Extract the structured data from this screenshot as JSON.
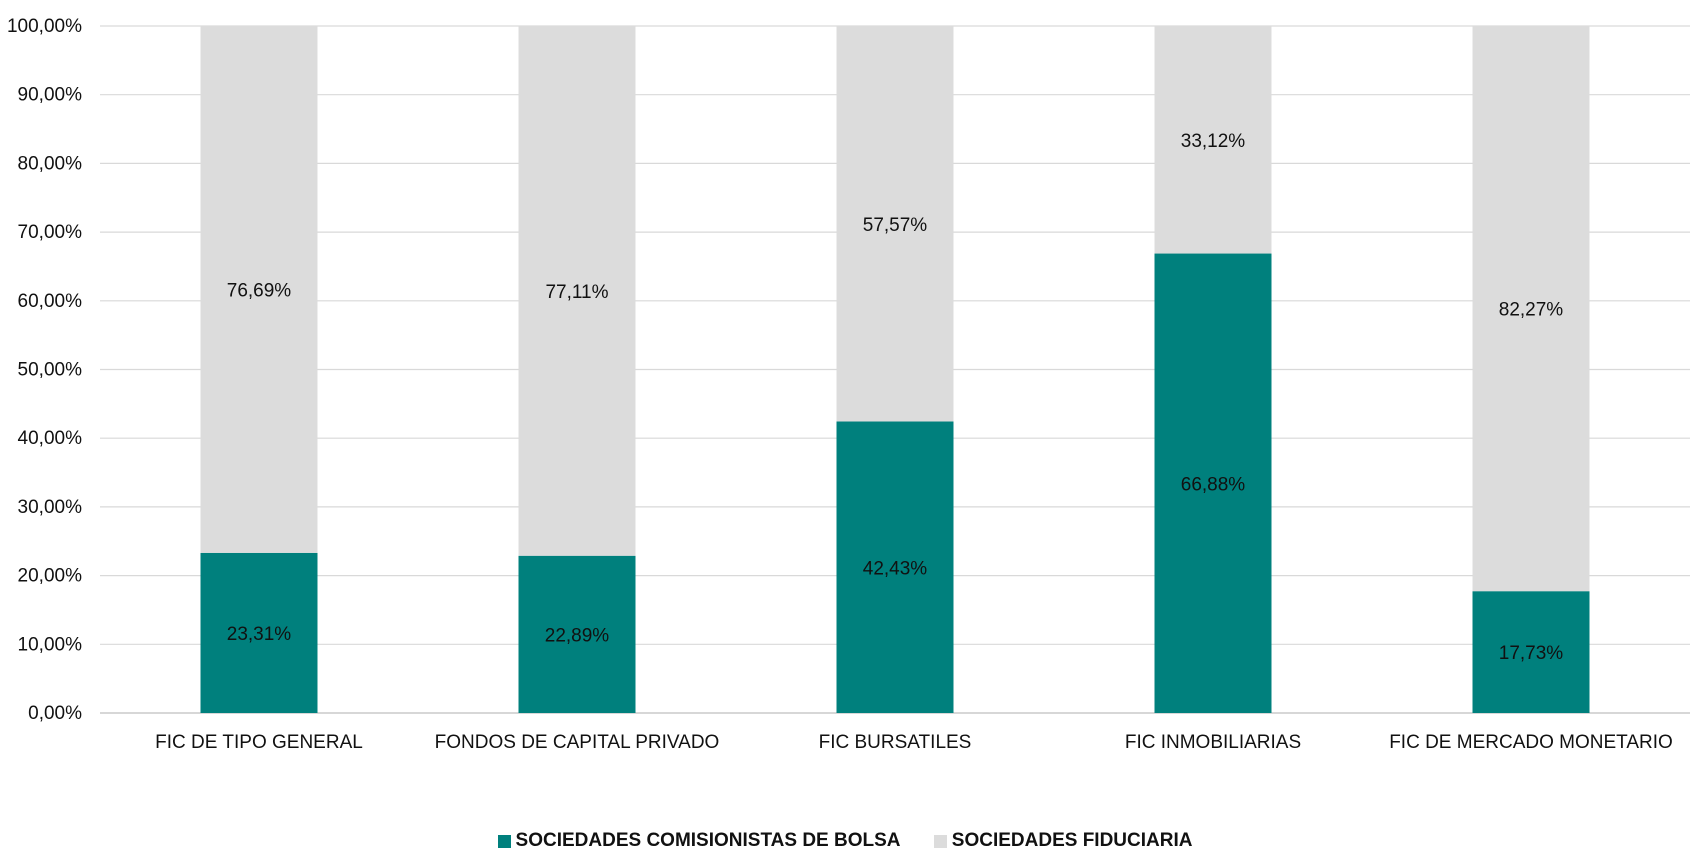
{
  "chart_data": {
    "type": "bar",
    "stacked": true,
    "categories": [
      "FIC DE TIPO GENERAL",
      "FONDOS DE CAPITAL PRIVADO",
      "FIC BURSATILES",
      "FIC INMOBILIARIAS",
      "FIC DE MERCADO MONETARIO"
    ],
    "series": [
      {
        "name": "SOCIEDADES COMISIONISTAS DE BOLSA",
        "values": [
          23.31,
          22.89,
          42.43,
          66.88,
          17.73
        ],
        "labels": [
          "23,31%",
          "22,89%",
          "42,43%",
          "66,88%",
          "17,73%"
        ],
        "color": "#00807d"
      },
      {
        "name": "SOCIEDADES FIDUCIARIA",
        "values": [
          76.69,
          77.11,
          57.57,
          33.12,
          82.27
        ],
        "labels": [
          "76,69%",
          "77,11%",
          "57,57%",
          "33,12%",
          "82,27%"
        ],
        "color": "#dcdcdc"
      }
    ],
    "ylim": [
      0,
      100
    ],
    "y_ticks": [
      "0,00%",
      "10,00%",
      "20,00%",
      "30,00%",
      "40,00%",
      "50,00%",
      "60,00%",
      "70,00%",
      "80,00%",
      "90,00%",
      "100,00%"
    ],
    "grid": true,
    "legend_position": "bottom",
    "title": "",
    "xlabel": "",
    "ylabel": ""
  }
}
